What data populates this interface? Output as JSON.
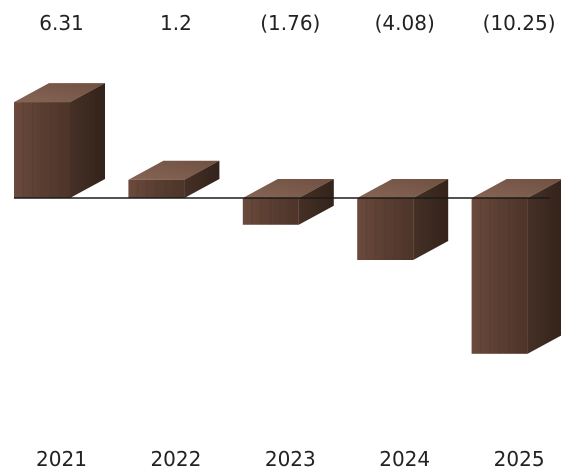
{
  "chart_data": {
    "type": "bar",
    "title": "",
    "xlabel": "",
    "ylabel": "",
    "categories": [
      "2021",
      "2022",
      "2023",
      "2024",
      "2025"
    ],
    "values": [
      6.31,
      1.2,
      -1.76,
      -4.08,
      -10.25
    ],
    "data_labels": [
      "6.31",
      "1.2",
      "(1.76)",
      "(4.08)",
      "(10.25)"
    ],
    "ylim": [
      -10.25,
      6.31
    ],
    "grid": false,
    "legend": "none",
    "style": "3d-wood-bars"
  },
  "colors": {
    "bar_front": "#5a3e32",
    "bar_top": "#7a5a4a",
    "bar_side": "#3f2a20",
    "axis": "#1a1a1a",
    "text": "#222222"
  }
}
